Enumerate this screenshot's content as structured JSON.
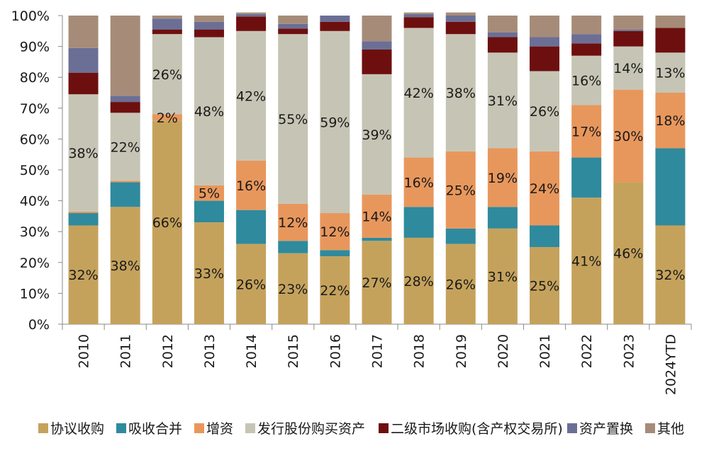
{
  "chart_data": {
    "type": "bar",
    "stacked": true,
    "percent": true,
    "categories": [
      "2010",
      "2011",
      "2012",
      "2013",
      "2014",
      "2015",
      "2016",
      "2017",
      "2018",
      "2019",
      "2020",
      "2021",
      "2022",
      "2023",
      "2024YTD"
    ],
    "y_ticks": [
      "0%",
      "10%",
      "20%",
      "30%",
      "40%",
      "50%",
      "60%",
      "70%",
      "80%",
      "90%",
      "100%"
    ],
    "ylim": [
      0,
      100
    ],
    "legend_position": "bottom",
    "series": [
      {
        "name": "协议收购",
        "color": "#c5a25c",
        "values": [
          32,
          38,
          66,
          33,
          26,
          23,
          22,
          27,
          28,
          26,
          31,
          25,
          41,
          46,
          32
        ],
        "labels": [
          "32%",
          "38%",
          "66%",
          "33%",
          "26%",
          "23%",
          "22%",
          "27%",
          "28%",
          "26%",
          "31%",
          "25%",
          "41%",
          "46%",
          "32%"
        ]
      },
      {
        "name": "吸收合并",
        "color": "#2f8a9d",
        "values": [
          4,
          8,
          0,
          7,
          11,
          4,
          2,
          1,
          10,
          5,
          7,
          7,
          13,
          0,
          25
        ],
        "labels": [
          "",
          "",
          "",
          "",
          "",
          "",
          "",
          "",
          "",
          "",
          "",
          "",
          "",
          "",
          ""
        ]
      },
      {
        "name": "增资",
        "color": "#e8975c",
        "values": [
          0.5,
          0.5,
          2,
          5,
          16,
          12,
          12,
          14,
          16,
          25,
          19,
          24,
          17,
          30,
          18
        ],
        "labels": [
          "",
          "",
          "2%",
          "5%",
          "16%",
          "12%",
          "12%",
          "14%",
          "16%",
          "25%",
          "19%",
          "24%",
          "17%",
          "30%",
          "18%"
        ]
      },
      {
        "name": "发行股份购买资产",
        "color": "#c6c5b5",
        "values": [
          38,
          22,
          26,
          48,
          42,
          55,
          59,
          39,
          42,
          38,
          31,
          26,
          16,
          14,
          13
        ],
        "labels": [
          "38%",
          "22%",
          "26%",
          "48%",
          "42%",
          "55%",
          "59%",
          "39%",
          "42%",
          "38%",
          "31%",
          "26%",
          "16%",
          "14%",
          "13%"
        ]
      },
      {
        "name": "二级市场收购(含产权交易所)",
        "color": "#6e0f0f",
        "values": [
          7,
          3.5,
          1.5,
          2.5,
          4.7,
          1.8,
          3,
          8,
          3.5,
          4,
          5,
          8,
          4,
          5,
          8
        ],
        "labels": [
          "",
          "",
          "",
          "",
          "",
          "",
          "",
          "",
          "",
          "",
          "",
          "",
          "",
          "",
          ""
        ]
      },
      {
        "name": "资产置换",
        "color": "#6b6f96",
        "values": [
          8,
          2,
          3.5,
          2.5,
          0.8,
          1.5,
          2,
          2.7,
          1,
          2,
          1.5,
          3,
          3,
          0.5,
          0
        ],
        "labels": [
          "",
          "",
          "",
          "",
          "",
          "",
          "",
          "",
          "",
          "",
          "",
          "",
          "",
          "",
          ""
        ]
      },
      {
        "name": "其他",
        "color": "#a68c78",
        "values": [
          10.5,
          26,
          1,
          2,
          0.5,
          2.7,
          0,
          8.3,
          0.5,
          1,
          5.5,
          7,
          6,
          4.5,
          4
        ],
        "labels": [
          "",
          "",
          "",
          "",
          "",
          "",
          "",
          "",
          "",
          "",
          "",
          "",
          "",
          "",
          ""
        ]
      }
    ]
  }
}
